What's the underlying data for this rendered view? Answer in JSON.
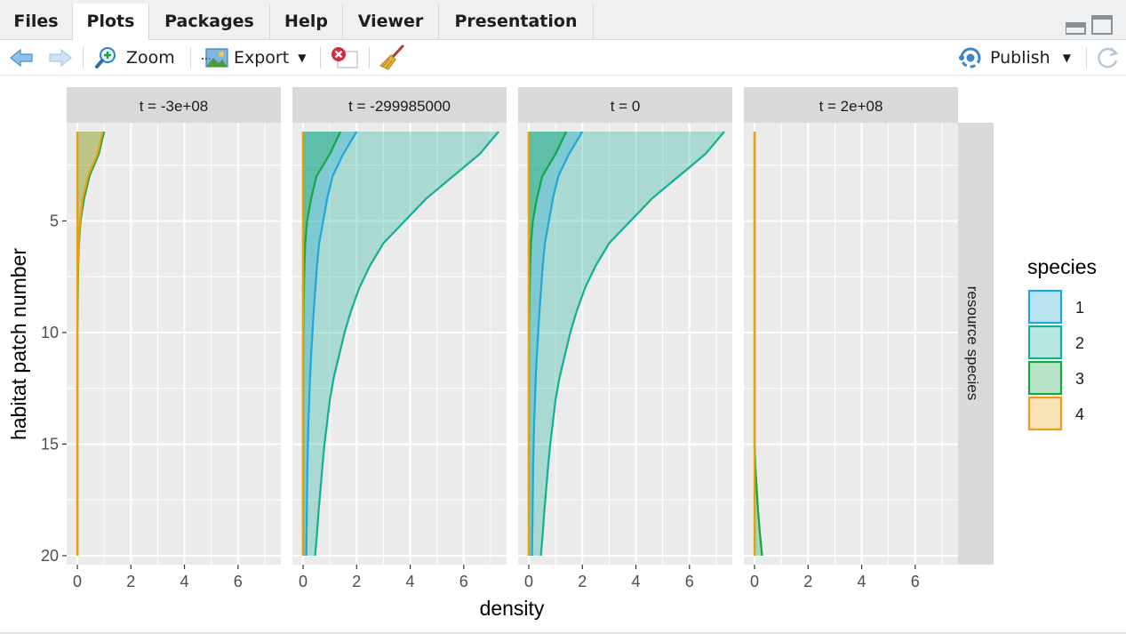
{
  "tabs": [
    {
      "label": "Files"
    },
    {
      "label": "Plots",
      "active": true
    },
    {
      "label": "Packages"
    },
    {
      "label": "Help"
    },
    {
      "label": "Viewer"
    },
    {
      "label": "Presentation"
    }
  ],
  "toolbar": {
    "zoom_label": "Zoom",
    "export_label": "Export",
    "publish_label": "Publish",
    "icons": [
      "back-arrow-icon",
      "forward-arrow-icon",
      "zoom-icon",
      "export-icon",
      "remove-plot-icon",
      "broom-icon",
      "publish-icon",
      "refresh-icon",
      "minimize-icon",
      "maximize-icon"
    ]
  },
  "chart_data": {
    "type": "area",
    "xlabel": "density",
    "ylabel": "habitat patch number",
    "xlim": [
      -0.4,
      7.6
    ],
    "ylim": [
      20.4,
      0.6
    ],
    "y_reversed": true,
    "x_ticks": [
      "0",
      "2",
      "4",
      "6"
    ],
    "y_ticks": [
      "5",
      "10",
      "15",
      "20"
    ],
    "strip_right": "resource species",
    "legend": {
      "title": "species",
      "placement": "right",
      "entries": [
        {
          "label": "1",
          "color": "#1ea7d8"
        },
        {
          "label": "2",
          "color": "#11b094"
        },
        {
          "label": "3",
          "color": "#15a546"
        },
        {
          "label": "4",
          "color": "#e8a010"
        }
      ]
    },
    "y": [
      1,
      2,
      3,
      4,
      5,
      6,
      7,
      8,
      9,
      10,
      11,
      12,
      13,
      14,
      15,
      16,
      17,
      18,
      19,
      20
    ],
    "panels": [
      {
        "label": "t = -3e+08",
        "series": [
          {
            "species": "3",
            "values": [
              1.0,
              0.8,
              0.45,
              0.25,
              0.12,
              0.06,
              0.03,
              0.02,
              0.01,
              0,
              0,
              0,
              0,
              0,
              0,
              0,
              0,
              0,
              0,
              0
            ]
          },
          {
            "species": "4",
            "values": [
              0.95,
              0.75,
              0.4,
              0.2,
              0.1,
              0.05,
              0.02,
              0.01,
              0,
              0,
              0,
              0,
              0,
              0,
              0,
              0,
              0,
              0,
              0,
              0
            ]
          }
        ]
      },
      {
        "label": "t = -299985000",
        "series": [
          {
            "species": "2",
            "values": [
              7.3,
              6.6,
              5.6,
              4.6,
              3.8,
              3.0,
              2.5,
              2.1,
              1.8,
              1.55,
              1.35,
              1.15,
              1.0,
              0.9,
              0.8,
              0.72,
              0.65,
              0.58,
              0.52,
              0.45
            ]
          },
          {
            "species": "1",
            "values": [
              2.0,
              1.5,
              1.1,
              0.9,
              0.75,
              0.6,
              0.52,
              0.46,
              0.4,
              0.35,
              0.3,
              0.26,
              0.23,
              0.2,
              0.18,
              0.16,
              0.15,
              0.14,
              0.13,
              0.12
            ]
          },
          {
            "species": "3",
            "values": [
              1.4,
              1.0,
              0.5,
              0.3,
              0.15,
              0.08,
              0.05,
              0.03,
              0.02,
              0.01,
              0,
              0,
              0,
              0,
              0,
              0,
              0,
              0,
              0,
              0
            ]
          },
          {
            "species": "4",
            "values": [
              0,
              0,
              0,
              0,
              0,
              0,
              0,
              0,
              0,
              0,
              0,
              0,
              0,
              0,
              0,
              0,
              0,
              0,
              0,
              0
            ]
          }
        ]
      },
      {
        "label": "t = 0",
        "series": [
          {
            "species": "2",
            "values": [
              7.3,
              6.6,
              5.6,
              4.6,
              3.8,
              3.0,
              2.5,
              2.1,
              1.8,
              1.55,
              1.35,
              1.15,
              1.0,
              0.9,
              0.8,
              0.72,
              0.65,
              0.58,
              0.52,
              0.45
            ]
          },
          {
            "species": "1",
            "values": [
              2.0,
              1.5,
              1.1,
              0.9,
              0.75,
              0.6,
              0.52,
              0.46,
              0.4,
              0.35,
              0.3,
              0.26,
              0.23,
              0.2,
              0.18,
              0.16,
              0.15,
              0.14,
              0.13,
              0.12
            ]
          },
          {
            "species": "3",
            "values": [
              1.4,
              1.0,
              0.5,
              0.3,
              0.15,
              0.08,
              0.05,
              0.03,
              0.02,
              0.01,
              0,
              0,
              0,
              0,
              0,
              0,
              0,
              0,
              0,
              0
            ]
          },
          {
            "species": "4",
            "values": [
              0,
              0,
              0,
              0,
              0,
              0,
              0,
              0,
              0,
              0,
              0,
              0,
              0,
              0,
              0,
              0,
              0,
              0,
              0,
              0
            ]
          }
        ]
      },
      {
        "label": "t = 2e+08",
        "series": [
          {
            "species": "3",
            "values": [
              0,
              0,
              0,
              0,
              0,
              0,
              0,
              0,
              0,
              0,
              0,
              0,
              0,
              0,
              0,
              0.03,
              0.08,
              0.13,
              0.2,
              0.28
            ]
          },
          {
            "species": "4",
            "values": [
              0,
              0,
              0,
              0,
              0,
              0,
              0,
              0,
              0,
              0,
              0,
              0,
              0,
              0,
              0,
              0,
              0,
              0,
              0,
              0
            ]
          }
        ]
      }
    ]
  }
}
